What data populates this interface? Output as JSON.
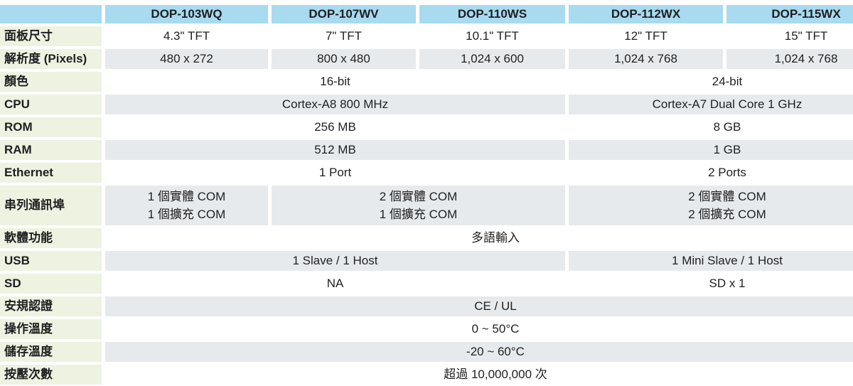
{
  "table": {
    "columns": {
      "c0": "",
      "c1": "DOP-103WQ",
      "c2": "DOP-107WV",
      "c3": "DOP-110WS",
      "c4": "DOP-112WX",
      "c5": "DOP-115WX"
    },
    "rows": [
      {
        "label": "面板尺寸",
        "cells": [
          {
            "text": "4.3\" TFT"
          },
          {
            "text": "7\" TFT"
          },
          {
            "text": "10.1\" TFT"
          },
          {
            "text": "12\" TFT"
          },
          {
            "text": "15\" TFT"
          }
        ]
      },
      {
        "label": "解析度 (Pixels)",
        "cells": [
          {
            "text": "480 x 272"
          },
          {
            "text": "800 x 480"
          },
          {
            "text": "1,024 x 600"
          },
          {
            "text": "1,024 x 768"
          },
          {
            "text": "1,024 x 768"
          }
        ]
      },
      {
        "label": "顏色",
        "cells": [
          {
            "text": "16-bit"
          },
          {
            "text": "24-bit"
          }
        ]
      },
      {
        "label": "CPU",
        "cells": [
          {
            "text": "Cortex-A8 800 MHz"
          },
          {
            "text": "Cortex-A7 Dual Core 1 GHz"
          }
        ]
      },
      {
        "label": "ROM",
        "cells": [
          {
            "text": "256 MB"
          },
          {
            "text": "8 GB"
          }
        ]
      },
      {
        "label": "RAM",
        "cells": [
          {
            "text": "512 MB"
          },
          {
            "text": "1 GB"
          }
        ]
      },
      {
        "label": "Ethernet",
        "cells": [
          {
            "text": "1 Port"
          },
          {
            "text": "2 Ports"
          }
        ]
      },
      {
        "label": "串列通訊埠",
        "cells": [
          {
            "lines": [
              "1 個實體 COM",
              "1 個擴充 COM"
            ]
          },
          {
            "lines": [
              "2 個實體 COM",
              "1 個擴充 COM"
            ]
          },
          {
            "lines": [
              "2 個實體 COM",
              "2 個擴充 COM"
            ]
          }
        ]
      },
      {
        "label": "軟體功能",
        "cells": [
          {
            "text": "多語輸入"
          }
        ]
      },
      {
        "label": "USB",
        "cells": [
          {
            "text": "1 Slave / 1 Host"
          },
          {
            "text": "1 Mini Slave / 1 Host"
          }
        ]
      },
      {
        "label": "SD",
        "cells": [
          {
            "text": "NA"
          },
          {
            "text": "SD x 1"
          }
        ]
      },
      {
        "label": "安規認證",
        "cells": [
          {
            "text": "CE / UL"
          }
        ]
      },
      {
        "label": "操作溫度",
        "cells": [
          {
            "text": "0 ~ 50°C"
          }
        ]
      },
      {
        "label": "儲存溫度",
        "cells": [
          {
            "text": "-20 ~ 60°C"
          }
        ]
      },
      {
        "label": "按壓次數",
        "cells": [
          {
            "text": "超過 10,000,000 次"
          }
        ]
      }
    ]
  },
  "colors": {
    "header_bg": "#a8daf0",
    "label_bg": "#eef2e1",
    "row_shade_bg": "#e7eaed",
    "text": "#1f1f1f"
  }
}
